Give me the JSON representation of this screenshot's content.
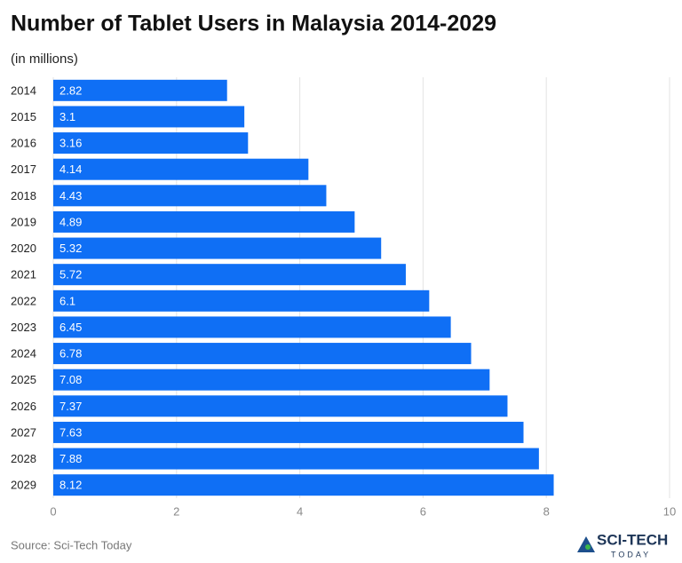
{
  "chart_data": {
    "type": "bar",
    "orientation": "horizontal",
    "title": "Number of Tablet Users in Malaysia 2014-2029",
    "subtitle": "(in millions)",
    "categories": [
      "2014",
      "2015",
      "2016",
      "2017",
      "2018",
      "2019",
      "2020",
      "2021",
      "2022",
      "2023",
      "2024",
      "2025",
      "2026",
      "2027",
      "2028",
      "2029"
    ],
    "values": [
      2.82,
      3.1,
      3.16,
      4.14,
      4.43,
      4.89,
      5.32,
      5.72,
      6.1,
      6.45,
      6.78,
      7.08,
      7.37,
      7.63,
      7.88,
      8.12
    ],
    "color": "#0f6ff5",
    "xlim": [
      0,
      10
    ],
    "xticks": [
      0,
      2,
      4,
      6,
      8,
      10
    ],
    "grid": true,
    "source": "Source: Sci-Tech Today"
  },
  "logo": {
    "name": "SCI-TECH",
    "tagline": "TODAY"
  }
}
